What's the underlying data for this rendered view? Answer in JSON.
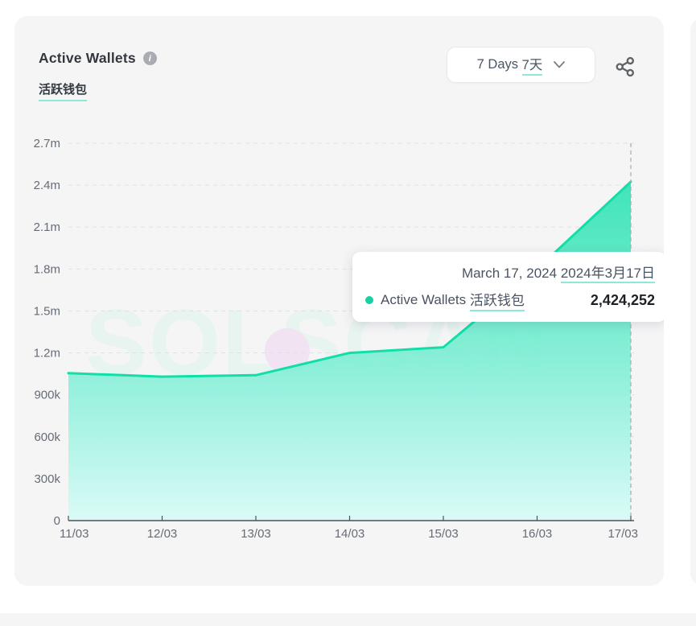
{
  "header": {
    "title": "Active Wallets",
    "subtitle_zh": "活跃钱包",
    "info_glyph": "i"
  },
  "controls": {
    "period_label_en": "7 Days",
    "period_label_zh": "7天"
  },
  "tooltip": {
    "date_en": "March 17, 2024",
    "date_zh": "2024年3月17日",
    "series_en": "Active Wallets",
    "series_zh": "活跃钱包",
    "value": "2,424,252"
  },
  "watermark": "SOLSCAN",
  "colors": {
    "accent_line": "#12dfa8",
    "fill_top": "#14e0ab",
    "fill_bottom": "#d9fbf7",
    "grid": "#dde1ec",
    "axis": "#4d525a",
    "label": "#666c76",
    "crosshair": "#a4aab5",
    "card_bg": "#f5f5f6",
    "underline": "#8ce9da"
  },
  "chart_data": {
    "type": "area",
    "title": "Active Wallets 活跃钱包",
    "x": [
      "11/03",
      "12/03",
      "13/03",
      "14/03",
      "15/03",
      "16/03",
      "17/03"
    ],
    "series": [
      {
        "name": "Active Wallets 活跃钱包",
        "values": [
          1055000,
          1030000,
          1040000,
          1200000,
          1240000,
          1800000,
          2424252
        ]
      }
    ],
    "ylim": [
      0,
      2700000
    ],
    "yticks": [
      {
        "value": 0,
        "label": "0"
      },
      {
        "value": 300000,
        "label": "300k"
      },
      {
        "value": 600000,
        "label": "600k"
      },
      {
        "value": 900000,
        "label": "900k"
      },
      {
        "value": 1200000,
        "label": "1.2m"
      },
      {
        "value": 1500000,
        "label": "1.5m"
      },
      {
        "value": 1800000,
        "label": "1.8m"
      },
      {
        "value": 2100000,
        "label": "2.1m"
      },
      {
        "value": 2400000,
        "label": "2.4m"
      },
      {
        "value": 2700000,
        "label": "2.7m"
      }
    ],
    "grid": "horizontal-dashed",
    "legend": "none",
    "highlight_point": {
      "x": "17/03",
      "value": 2424252,
      "crosshair": "vertical-dashed"
    }
  }
}
